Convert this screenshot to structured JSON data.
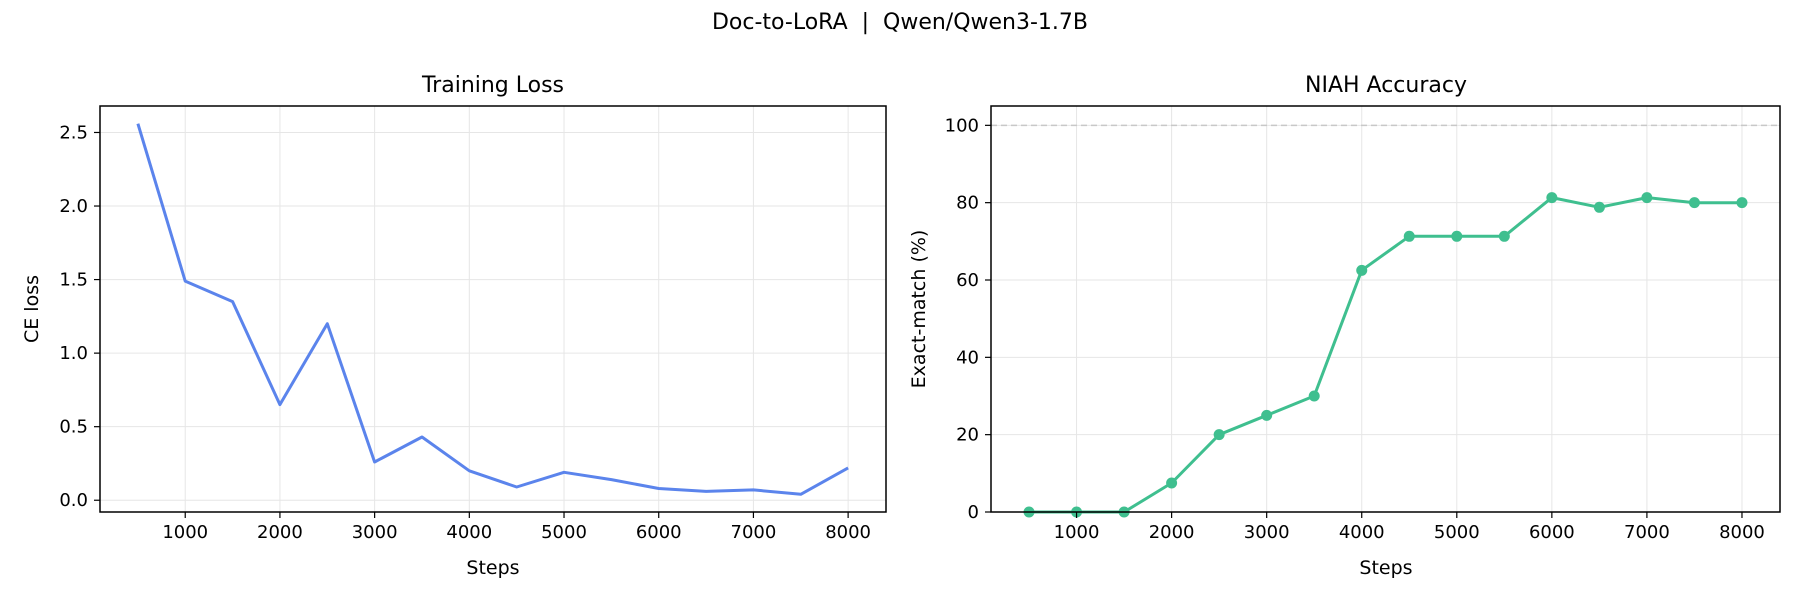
{
  "figure": {
    "suptitle": "Doc-to-LoRA  |  Qwen/Qwen3-1.7B"
  },
  "colors": {
    "loss_line": "#5b84ec",
    "acc_line": "#3fbf8f",
    "reference_line": "#c8c8c8",
    "grid": "#e6e6e6",
    "axes": "#000000"
  },
  "chart_data": [
    {
      "type": "line",
      "title": "Training Loss",
      "xlabel": "Steps",
      "ylabel": "CE loss",
      "x": [
        500,
        1000,
        1500,
        2000,
        2500,
        3000,
        3500,
        4000,
        4500,
        5000,
        5500,
        6000,
        6500,
        7000,
        7500,
        8000
      ],
      "series": [
        {
          "values": [
            2.56,
            1.49,
            1.35,
            0.65,
            1.2,
            0.26,
            0.43,
            0.2,
            0.09,
            0.19,
            0.14,
            0.08,
            0.06,
            0.07,
            0.04,
            0.22
          ]
        }
      ],
      "xlim": [
        100,
        8400
      ],
      "ylim": [
        -0.08,
        2.68
      ],
      "xticks": [
        1000,
        2000,
        3000,
        4000,
        5000,
        6000,
        7000,
        8000
      ],
      "xtick_labels": [
        "1000",
        "2000",
        "3000",
        "4000",
        "5000",
        "6000",
        "7000",
        "8000"
      ],
      "yticks": [
        0.0,
        0.5,
        1.0,
        1.5,
        2.0,
        2.5
      ],
      "ytick_labels": [
        "0.0",
        "0.5",
        "1.0",
        "1.5",
        "2.0",
        "2.5"
      ],
      "grid": true,
      "markers": false
    },
    {
      "type": "line",
      "title": "NIAH Accuracy",
      "xlabel": "Steps",
      "ylabel": "Exact-match (%)",
      "x": [
        500,
        1000,
        1500,
        2000,
        2500,
        3000,
        3500,
        4000,
        4500,
        5000,
        5500,
        6000,
        6500,
        7000,
        7500,
        8000
      ],
      "series": [
        {
          "values": [
            0,
            0,
            0,
            7.5,
            20,
            25,
            30,
            62.5,
            71.3,
            71.3,
            71.3,
            81.3,
            78.8,
            81.3,
            80,
            80
          ]
        }
      ],
      "reference_line": {
        "y": 100,
        "style": "dashed"
      },
      "xlim": [
        100,
        8400
      ],
      "ylim": [
        0,
        105
      ],
      "xticks": [
        1000,
        2000,
        3000,
        4000,
        5000,
        6000,
        7000,
        8000
      ],
      "xtick_labels": [
        "1000",
        "2000",
        "3000",
        "4000",
        "5000",
        "6000",
        "7000",
        "8000"
      ],
      "yticks": [
        0,
        20,
        40,
        60,
        80,
        100
      ],
      "ytick_labels": [
        "0",
        "20",
        "40",
        "60",
        "80",
        "100"
      ],
      "grid": true,
      "markers": true
    }
  ]
}
